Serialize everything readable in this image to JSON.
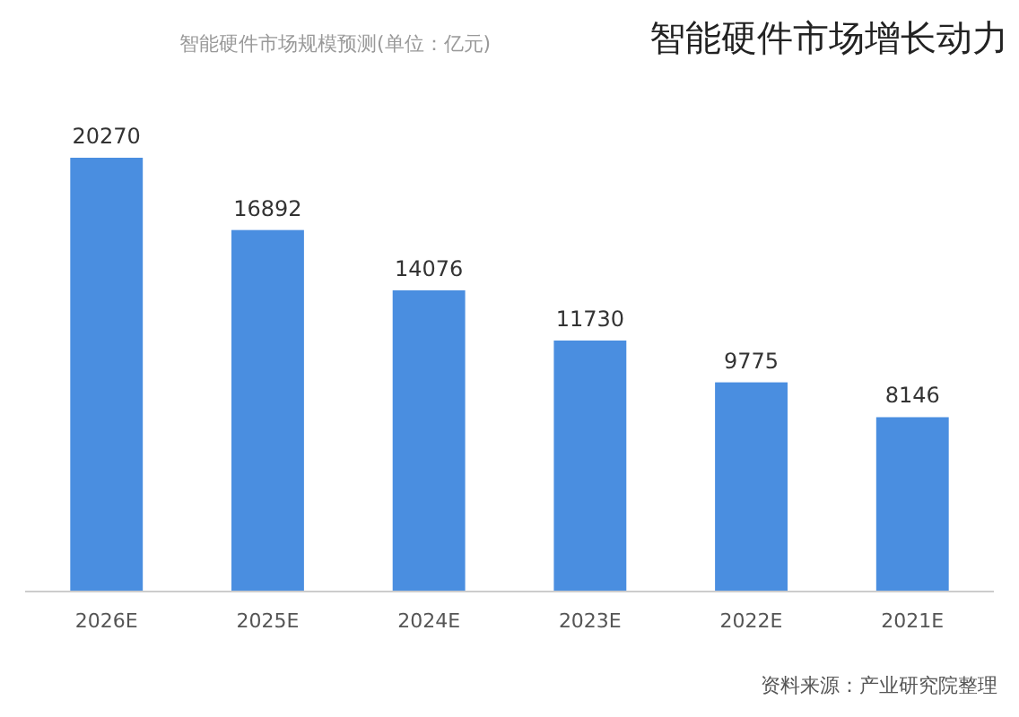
{
  "chart_data": {
    "type": "bar",
    "title": "智能硬件市场增长动力",
    "subtitle": "智能硬件市场规模预测(单位：亿元)",
    "categories": [
      "2026E",
      "2025E",
      "2024E",
      "2023E",
      "2022E",
      "2021E"
    ],
    "values": [
      20270,
      16892,
      14076,
      11730,
      9775,
      8146
    ],
    "color": "#4a8ee0",
    "data_labels": true,
    "annotations": [
      "资料来源：产业研究院整理"
    ]
  }
}
